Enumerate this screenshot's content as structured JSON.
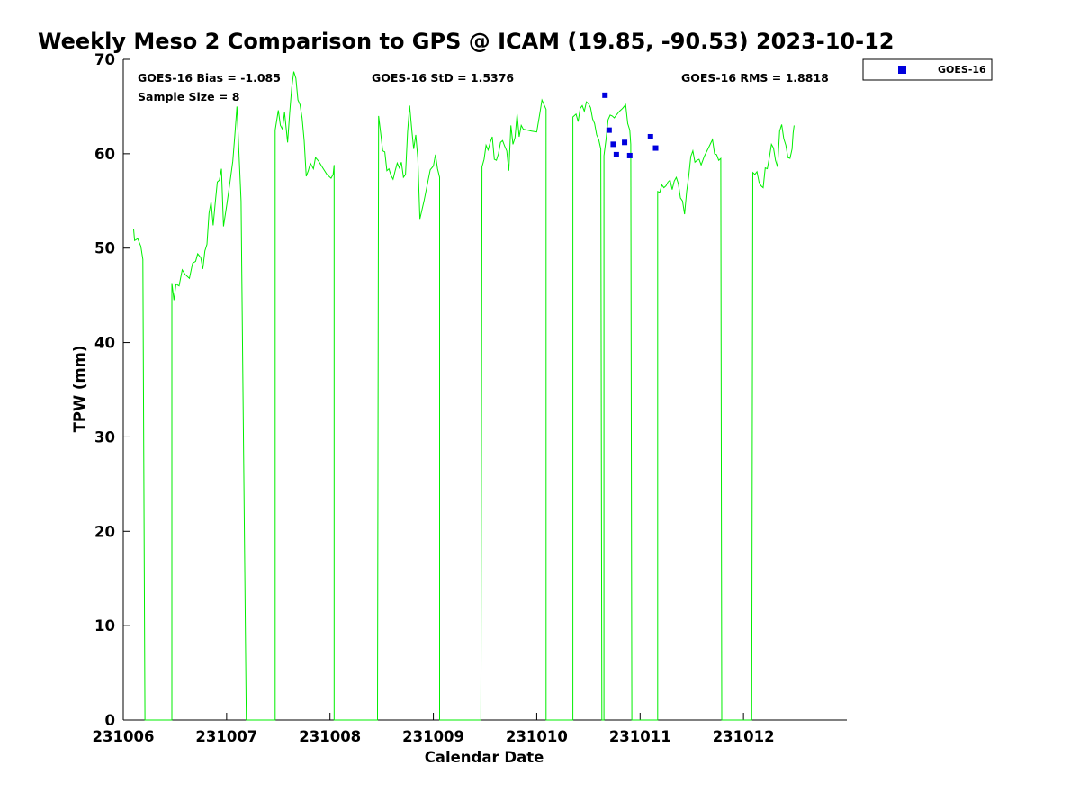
{
  "chart_data": {
    "type": "line",
    "title": "Weekly Meso 2 Comparison to GPS @ ICAM (19.85, -90.53) 2023-10-12",
    "xlabel": "Calendar Date",
    "ylabel": "TPW (mm)",
    "xlim": [
      0,
      7
    ],
    "ylim": [
      0,
      70
    ],
    "x_unit": "days after 231006",
    "xticks": [
      {
        "x": 0,
        "label": "231006"
      },
      {
        "x": 1,
        "label": "231007"
      },
      {
        "x": 2,
        "label": "231008"
      },
      {
        "x": 3,
        "label": "231009"
      },
      {
        "x": 4,
        "label": "231010"
      },
      {
        "x": 5,
        "label": "231011"
      },
      {
        "x": 6,
        "label": "231012"
      }
    ],
    "yticks": [
      0,
      10,
      20,
      30,
      40,
      50,
      60,
      70
    ],
    "stats": {
      "bias": "GOES-16 Bias = -1.085",
      "std": "GOES-16 StD = 1.5376",
      "rms": "GOES-16 RMS = 1.8818",
      "sample": "Sample Size = 8"
    },
    "legend": {
      "label": "GOES-16",
      "position": "top-right outside",
      "marker": "square",
      "color": "#0000dd"
    },
    "gps_series": {
      "color": "#00ee00",
      "points": [
        [
          0.1,
          52.0
        ],
        [
          0.11,
          50.8
        ],
        [
          0.14,
          51.0
        ],
        [
          0.17,
          50.2
        ],
        [
          0.19,
          48.8
        ],
        [
          0.21,
          0
        ],
        [
          0.47,
          0
        ],
        [
          0.47,
          46.3
        ],
        [
          0.49,
          44.5
        ],
        [
          0.51,
          46.2
        ],
        [
          0.54,
          46.0
        ],
        [
          0.57,
          47.7
        ],
        [
          0.6,
          47.2
        ],
        [
          0.64,
          46.8
        ],
        [
          0.67,
          48.4
        ],
        [
          0.7,
          48.6
        ],
        [
          0.72,
          49.4
        ],
        [
          0.75,
          49.0
        ],
        [
          0.77,
          47.8
        ],
        [
          0.79,
          49.7
        ],
        [
          0.81,
          50.4
        ],
        [
          0.83,
          53.7
        ],
        [
          0.85,
          54.9
        ],
        [
          0.87,
          52.4
        ],
        [
          0.89,
          54.8
        ],
        [
          0.91,
          57.0
        ],
        [
          0.93,
          57.2
        ],
        [
          0.95,
          58.4
        ],
        [
          0.97,
          52.3
        ],
        [
          1.0,
          54.5
        ],
        [
          1.03,
          56.8
        ],
        [
          1.06,
          59.2
        ],
        [
          1.08,
          62.0
        ],
        [
          1.1,
          65.0
        ],
        [
          1.12,
          60.0
        ],
        [
          1.14,
          55.0
        ],
        [
          1.19,
          0
        ],
        [
          1.47,
          0
        ],
        [
          1.47,
          62.5
        ],
        [
          1.5,
          64.6
        ],
        [
          1.52,
          63.0
        ],
        [
          1.54,
          62.6
        ],
        [
          1.56,
          64.4
        ],
        [
          1.59,
          61.2
        ],
        [
          1.61,
          64.3
        ],
        [
          1.63,
          67.0
        ],
        [
          1.65,
          68.7
        ],
        [
          1.67,
          68.0
        ],
        [
          1.69,
          65.7
        ],
        [
          1.71,
          65.2
        ],
        [
          1.73,
          63.8
        ],
        [
          1.75,
          61.4
        ],
        [
          1.77,
          57.6
        ],
        [
          1.79,
          58.2
        ],
        [
          1.81,
          59.0
        ],
        [
          1.84,
          58.4
        ],
        [
          1.86,
          59.6
        ],
        [
          1.89,
          59.2
        ],
        [
          1.93,
          58.5
        ],
        [
          1.97,
          57.8
        ],
        [
          2.01,
          57.4
        ],
        [
          2.03,
          57.8
        ],
        [
          2.04,
          58.8
        ],
        [
          2.04,
          0
        ],
        [
          2.46,
          0
        ],
        [
          2.47,
          64.0
        ],
        [
          2.49,
          62.2
        ],
        [
          2.51,
          60.3
        ],
        [
          2.53,
          60.2
        ],
        [
          2.55,
          58.2
        ],
        [
          2.57,
          58.4
        ],
        [
          2.59,
          57.7
        ],
        [
          2.61,
          57.3
        ],
        [
          2.63,
          58.2
        ],
        [
          2.65,
          59.0
        ],
        [
          2.67,
          58.5
        ],
        [
          2.69,
          59.1
        ],
        [
          2.71,
          57.5
        ],
        [
          2.73,
          57.8
        ],
        [
          2.75,
          62.3
        ],
        [
          2.77,
          65.1
        ],
        [
          2.79,
          62.6
        ],
        [
          2.81,
          60.5
        ],
        [
          2.83,
          62.0
        ],
        [
          2.85,
          59.5
        ],
        [
          2.87,
          53.1
        ],
        [
          2.91,
          55.0
        ],
        [
          2.95,
          57.2
        ],
        [
          2.97,
          58.3
        ],
        [
          3.0,
          58.7
        ],
        [
          3.02,
          59.9
        ],
        [
          3.04,
          58.4
        ],
        [
          3.06,
          57.5
        ],
        [
          3.06,
          0
        ],
        [
          3.46,
          0
        ],
        [
          3.47,
          58.6
        ],
        [
          3.49,
          59.4
        ],
        [
          3.51,
          60.9
        ],
        [
          3.53,
          60.4
        ],
        [
          3.55,
          61.2
        ],
        [
          3.57,
          61.8
        ],
        [
          3.59,
          59.4
        ],
        [
          3.61,
          59.3
        ],
        [
          3.63,
          60.0
        ],
        [
          3.65,
          61.2
        ],
        [
          3.67,
          61.4
        ],
        [
          3.69,
          60.8
        ],
        [
          3.71,
          60.3
        ],
        [
          3.73,
          58.2
        ],
        [
          3.75,
          63.0
        ],
        [
          3.77,
          61.0
        ],
        [
          3.79,
          61.7
        ],
        [
          3.81,
          64.2
        ],
        [
          3.83,
          61.8
        ],
        [
          3.85,
          63.0
        ],
        [
          3.87,
          62.6
        ],
        [
          3.91,
          62.5
        ],
        [
          3.95,
          62.4
        ],
        [
          4.0,
          62.3
        ],
        [
          4.03,
          64.3
        ],
        [
          4.05,
          65.7
        ],
        [
          4.07,
          65.2
        ],
        [
          4.09,
          64.7
        ],
        [
          4.09,
          0
        ],
        [
          4.35,
          0
        ],
        [
          4.35,
          63.9
        ],
        [
          4.38,
          64.2
        ],
        [
          4.4,
          63.4
        ],
        [
          4.42,
          64.8
        ],
        [
          4.44,
          65.1
        ],
        [
          4.46,
          64.5
        ],
        [
          4.48,
          65.5
        ],
        [
          4.5,
          65.3
        ],
        [
          4.52,
          64.9
        ],
        [
          4.54,
          63.7
        ],
        [
          4.56,
          63.2
        ],
        [
          4.58,
          62.0
        ],
        [
          4.6,
          61.5
        ],
        [
          4.62,
          60.5
        ],
        [
          4.63,
          0
        ],
        [
          4.65,
          0
        ],
        [
          4.65,
          59.8
        ],
        [
          4.67,
          61.5
        ],
        [
          4.69,
          63.6
        ],
        [
          4.71,
          64.1
        ],
        [
          4.73,
          64.0
        ],
        [
          4.75,
          63.8
        ],
        [
          4.77,
          64.1
        ],
        [
          4.8,
          64.5
        ],
        [
          4.83,
          64.8
        ],
        [
          4.86,
          65.2
        ],
        [
          4.88,
          63.2
        ],
        [
          4.9,
          62.5
        ],
        [
          4.91,
          61.0
        ],
        [
          4.92,
          0
        ],
        [
          5.17,
          0
        ],
        [
          5.17,
          56.0
        ],
        [
          5.19,
          55.9
        ],
        [
          5.21,
          56.7
        ],
        [
          5.23,
          56.4
        ],
        [
          5.25,
          56.6
        ],
        [
          5.27,
          57.0
        ],
        [
          5.29,
          57.2
        ],
        [
          5.31,
          56.2
        ],
        [
          5.33,
          57.1
        ],
        [
          5.35,
          57.5
        ],
        [
          5.37,
          56.8
        ],
        [
          5.39,
          55.3
        ],
        [
          5.41,
          55.0
        ],
        [
          5.43,
          53.6
        ],
        [
          5.45,
          56.0
        ],
        [
          5.47,
          57.6
        ],
        [
          5.49,
          59.7
        ],
        [
          5.51,
          60.3
        ],
        [
          5.53,
          59.1
        ],
        [
          5.55,
          59.3
        ],
        [
          5.57,
          59.4
        ],
        [
          5.59,
          58.8
        ],
        [
          5.62,
          59.7
        ],
        [
          5.66,
          60.6
        ],
        [
          5.7,
          61.5
        ],
        [
          5.72,
          60.0
        ],
        [
          5.74,
          59.9
        ],
        [
          5.76,
          59.3
        ],
        [
          5.78,
          59.5
        ],
        [
          5.79,
          0
        ],
        [
          6.08,
          0
        ],
        [
          6.09,
          58.0
        ],
        [
          6.11,
          57.8
        ],
        [
          6.13,
          58.1
        ],
        [
          6.15,
          57.0
        ],
        [
          6.17,
          56.6
        ],
        [
          6.19,
          56.4
        ],
        [
          6.21,
          58.5
        ],
        [
          6.23,
          58.4
        ],
        [
          6.25,
          59.6
        ],
        [
          6.27,
          61.0
        ],
        [
          6.29,
          60.6
        ],
        [
          6.31,
          59.3
        ],
        [
          6.33,
          58.6
        ],
        [
          6.35,
          62.4
        ],
        [
          6.37,
          63.1
        ],
        [
          6.39,
          61.6
        ],
        [
          6.41,
          60.9
        ],
        [
          6.43,
          59.6
        ],
        [
          6.45,
          59.5
        ],
        [
          6.47,
          60.5
        ],
        [
          6.48,
          62.2
        ],
        [
          6.49,
          63.0
        ]
      ]
    },
    "goes_points": [
      [
        4.66,
        66.2
      ],
      [
        4.7,
        62.5
      ],
      [
        4.74,
        61.0
      ],
      [
        4.77,
        59.9
      ],
      [
        4.85,
        61.2
      ],
      [
        4.9,
        59.8
      ],
      [
        5.1,
        61.8
      ],
      [
        5.15,
        60.6
      ]
    ]
  }
}
